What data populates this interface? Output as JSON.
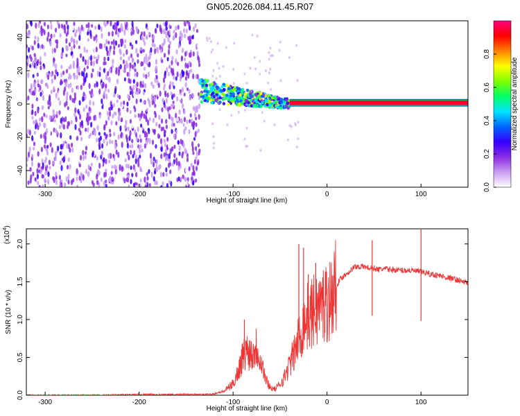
{
  "chart_data": [
    {
      "type": "heatmap",
      "title": "GN05.2026.084.11.45.R07",
      "xlabel": "Height of straight line (km)",
      "ylabel": "Frequency (Hz)",
      "xlim": [
        -320,
        150
      ],
      "ylim": [
        -50,
        50
      ],
      "x_ticks": [
        -300,
        -200,
        -100,
        0,
        100
      ],
      "y_ticks": [
        -40,
        -20,
        0,
        20,
        40
      ],
      "colorbar": {
        "label": "Normalized spectral amplitude",
        "range": [
          0.0,
          1.0
        ],
        "ticks": [
          0.0,
          0.2,
          0.4,
          0.6,
          0.8
        ],
        "colors": [
          "#ffffff",
          "#c89cf2",
          "#8a2be2",
          "#3300ff",
          "#0066ff",
          "#00e5ff",
          "#00ff66",
          "#7fff00",
          "#ffff00",
          "#ff8000",
          "#ff0000",
          "#ff0080"
        ]
      },
      "bands": [
        {
          "x": [
            -320,
            -135
          ],
          "f": [
            -50,
            50
          ],
          "amp": 0.12,
          "pattern": "noise"
        },
        {
          "x": [
            -135,
            -40
          ],
          "f": [
            -8,
            18
          ],
          "amp": 0.45,
          "pattern": "descending"
        },
        {
          "x": [
            -40,
            150
          ],
          "f": [
            0,
            1.5
          ],
          "amp": 0.95,
          "pattern": "tone"
        }
      ]
    },
    {
      "type": "line",
      "xlabel": "Height of straight line (km)",
      "ylabel": "SNR (10 * v/v)",
      "y_multiplier": "(x10",
      "y_multiplier_exp": "4",
      "y_multiplier_close": ")",
      "xlim": [
        -320,
        150
      ],
      "ylim": [
        0.0,
        2.2
      ],
      "x_ticks": [
        -300,
        -200,
        -100,
        0,
        100
      ],
      "y_ticks": [
        "0.0",
        "0.5",
        "1.0",
        "1.5",
        "2.0"
      ],
      "color": "#ee3333",
      "x": [
        -320,
        -280,
        -240,
        -200,
        -160,
        -130,
        -120,
        -110,
        -100,
        -95,
        -90,
        -85,
        -80,
        -75,
        -70,
        -65,
        -60,
        -55,
        -50,
        -45,
        -40,
        -35,
        -30,
        -25,
        -20,
        -15,
        -10,
        -5,
        0,
        5,
        10,
        15,
        20,
        25,
        30,
        35,
        40,
        45,
        50,
        55,
        60,
        70,
        80,
        90,
        95,
        100,
        105,
        110,
        120,
        130,
        140,
        150
      ],
      "values": [
        0.0,
        0.0,
        0.0,
        0.01,
        0.01,
        0.01,
        0.02,
        0.05,
        0.15,
        0.3,
        0.5,
        0.6,
        0.55,
        0.65,
        0.45,
        0.2,
        0.1,
        0.08,
        0.15,
        0.25,
        0.4,
        0.55,
        0.75,
        0.95,
        1.05,
        1.1,
        1.15,
        1.2,
        1.25,
        1.3,
        1.45,
        1.55,
        1.6,
        1.65,
        1.7,
        1.7,
        1.7,
        1.68,
        1.68,
        1.66,
        1.67,
        1.66,
        1.65,
        1.65,
        1.64,
        1.63,
        1.62,
        1.6,
        1.58,
        1.55,
        1.52,
        1.48
      ],
      "spikes": [
        {
          "x": -88,
          "y": 1.0
        },
        {
          "x": -30,
          "y": 2.0
        },
        {
          "x": -25,
          "y": 1.95
        },
        {
          "x": -20,
          "y": 1.6
        },
        {
          "x": -12,
          "y": 1.75
        },
        {
          "x": 48,
          "y": 2.05
        },
        {
          "x": 48,
          "y": 1.05
        },
        {
          "x": 100,
          "y": 2.2
        },
        {
          "x": 100,
          "y": 0.98
        }
      ]
    }
  ]
}
